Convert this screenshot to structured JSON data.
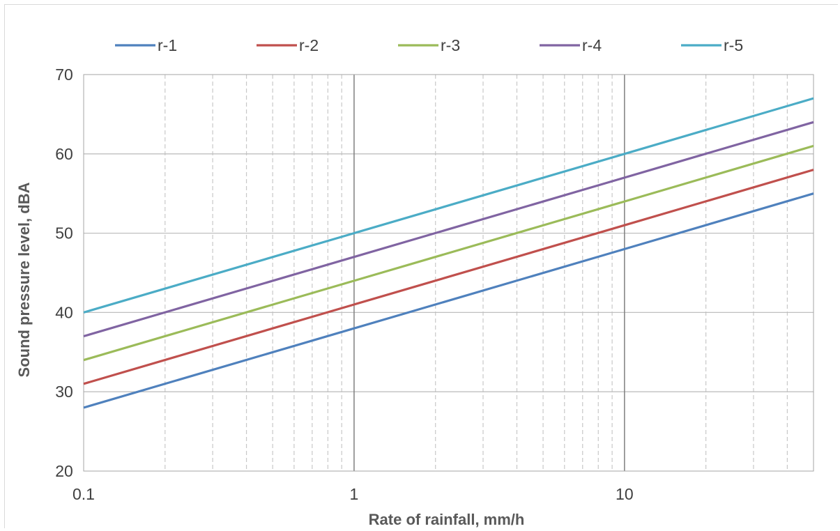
{
  "chart_data": {
    "type": "line",
    "title": "",
    "xlabel": "Rate of rainfall, mm/h",
    "ylabel": "Sound pressure level, dBA",
    "xscale": "log",
    "xlim": [
      0.1,
      50
    ],
    "ylim": [
      20,
      70
    ],
    "x_ticks": [
      "0.1",
      "1",
      "10"
    ],
    "y_ticks": [
      "20",
      "30",
      "40",
      "50",
      "60",
      "70"
    ],
    "grid": {
      "major": true,
      "minor": true,
      "minor_style": "dashed"
    },
    "legend_position": "top",
    "x": [
      0.1,
      1,
      10,
      50
    ],
    "series": [
      {
        "name": "r-1",
        "color": "#4f81bd",
        "values": [
          28,
          38,
          48,
          55
        ]
      },
      {
        "name": "r-2",
        "color": "#c0504d",
        "values": [
          31,
          41,
          51,
          58
        ]
      },
      {
        "name": "r-3",
        "color": "#9bbb59",
        "values": [
          34,
          44,
          54,
          61
        ]
      },
      {
        "name": "r-4",
        "color": "#8064a2",
        "values": [
          37,
          47,
          57,
          64
        ]
      },
      {
        "name": "r-5",
        "color": "#4bacc6",
        "values": [
          40,
          50,
          60,
          67
        ]
      }
    ]
  }
}
